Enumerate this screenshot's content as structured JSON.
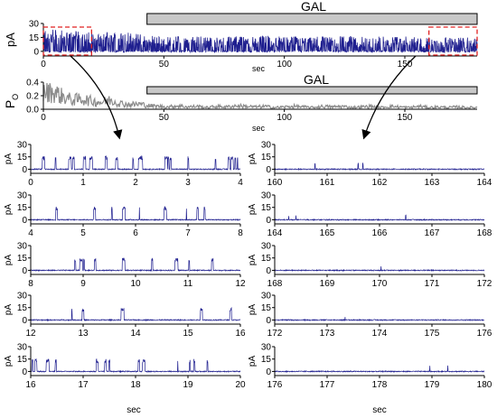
{
  "figure": {
    "annotation_label": "GAL",
    "trace_color": "#1f1f8f",
    "po_color": "#8c8c8c",
    "gal_bar_color": "#c8c8c8",
    "highlight_color": "#e02020"
  },
  "chart_data": [
    {
      "id": "top-current",
      "type": "line",
      "ylabel": "pA",
      "xlabel": "sec",
      "xlim": [
        0,
        180
      ],
      "ylim": [
        -5,
        30
      ],
      "yticks": [
        "0",
        "15",
        "30"
      ],
      "ytick_values": [
        0,
        15,
        30
      ],
      "xticks": [
        "0",
        "50",
        "100",
        "150"
      ],
      "xtick_values": [
        0,
        50,
        100,
        150
      ],
      "gal_bar": [
        43,
        180
      ],
      "highlight_windows": [
        [
          0,
          20
        ],
        [
          160,
          180
        ]
      ],
      "x": [
        0,
        5,
        10,
        15,
        20,
        25,
        30,
        35,
        40,
        45,
        50,
        55,
        60,
        65,
        70,
        75,
        80,
        85,
        90,
        95,
        100,
        105,
        110,
        115,
        120,
        125,
        130,
        135,
        140,
        145,
        150,
        155,
        160,
        165,
        170,
        175,
        180
      ],
      "y_max": [
        25,
        23,
        22,
        21,
        21,
        20,
        22,
        20,
        19,
        17,
        16,
        16,
        15,
        16,
        15,
        16,
        16,
        15,
        16,
        17,
        15,
        16,
        15,
        16,
        15,
        16,
        16,
        15,
        16,
        15,
        16,
        15,
        14,
        15,
        14,
        15,
        14
      ]
    },
    {
      "id": "top-po",
      "type": "line",
      "ylabel": "P",
      "ylabel_sub": "O",
      "xlabel": "sec",
      "xlim": [
        0,
        180
      ],
      "ylim": [
        0,
        0.4
      ],
      "yticks": [
        "0.0",
        "0.2",
        "0.4"
      ],
      "ytick_values": [
        0.0,
        0.2,
        0.4
      ],
      "xticks": [
        "0",
        "50",
        "100",
        "150"
      ],
      "xtick_values": [
        0,
        50,
        100,
        150
      ],
      "gal_bar": [
        43,
        180
      ],
      "x": [
        0,
        4,
        8,
        12,
        16,
        20,
        24,
        28,
        32,
        36,
        40,
        44,
        48,
        52,
        56,
        60,
        64,
        68,
        72,
        76,
        80,
        84,
        88,
        92,
        96,
        100,
        104,
        108,
        112,
        116,
        120,
        124,
        128,
        132,
        136,
        140,
        144,
        148,
        152,
        156,
        160,
        164,
        168,
        172,
        176,
        180
      ],
      "y": [
        0.28,
        0.3,
        0.22,
        0.16,
        0.18,
        0.14,
        0.12,
        0.16,
        0.1,
        0.08,
        0.09,
        0.06,
        0.05,
        0.04,
        0.06,
        0.04,
        0.05,
        0.03,
        0.05,
        0.04,
        0.06,
        0.05,
        0.04,
        0.05,
        0.03,
        0.04,
        0.05,
        0.04,
        0.03,
        0.05,
        0.04,
        0.05,
        0.03,
        0.04,
        0.05,
        0.03,
        0.05,
        0.04,
        0.03,
        0.05,
        0.03,
        0.04,
        0.03,
        0.04,
        0.03,
        0.03
      ]
    },
    {
      "id": "detail-panels",
      "type": "line",
      "ylabel": "pA",
      "xlabel": "sec",
      "ylim": [
        -5,
        30
      ],
      "yticks": [
        "0",
        "15",
        "30"
      ],
      "ytick_values": [
        0,
        15,
        30
      ],
      "panels": [
        {
          "id": "l1",
          "xlim": [
            0,
            4
          ],
          "xticks": [
            "0",
            "1",
            "2",
            "3",
            "4"
          ],
          "activity": "high",
          "event_max": 16,
          "ybase": 0
        },
        {
          "id": "l2",
          "xlim": [
            4,
            8
          ],
          "xticks": [
            "4",
            "5",
            "6",
            "7",
            "8"
          ],
          "activity": "high",
          "event_max": 16,
          "ybase": 0
        },
        {
          "id": "l3",
          "xlim": [
            8,
            12
          ],
          "xticks": [
            "8",
            "9",
            "10",
            "11",
            "12"
          ],
          "activity": "medium",
          "event_max": 15,
          "ybase": 0
        },
        {
          "id": "l4",
          "xlim": [
            12,
            16
          ],
          "xticks": [
            "12",
            "13",
            "14",
            "15",
            "16"
          ],
          "activity": "medium",
          "event_max": 15,
          "ybase": 0
        },
        {
          "id": "l5",
          "xlim": [
            16,
            20
          ],
          "xticks": [
            "16",
            "17",
            "18",
            "19",
            "20"
          ],
          "activity": "medium",
          "event_max": 15,
          "ybase": 0
        },
        {
          "id": "r1",
          "xlim": [
            160,
            164
          ],
          "xticks": [
            "160",
            "161",
            "162",
            "163",
            "164"
          ],
          "activity": "low",
          "event_max": 8,
          "ybase": 0
        },
        {
          "id": "r2",
          "xlim": [
            164,
            168
          ],
          "xticks": [
            "164",
            "165",
            "166",
            "167",
            "168"
          ],
          "activity": "low",
          "event_max": 6,
          "ybase": 0
        },
        {
          "id": "r3",
          "xlim": [
            168,
            172
          ],
          "xticks": [
            "168",
            "169",
            "170",
            "171",
            "172"
          ],
          "activity": "low",
          "event_max": 5,
          "ybase": 0
        },
        {
          "id": "r4",
          "xlim": [
            172,
            176
          ],
          "xticks": [
            "172",
            "173",
            "174",
            "175",
            "176"
          ],
          "activity": "low",
          "event_max": 5,
          "ybase": 0
        },
        {
          "id": "r5",
          "xlim": [
            176,
            180
          ],
          "xticks": [
            "176",
            "177",
            "178",
            "179",
            "180"
          ],
          "activity": "low",
          "event_max": 8,
          "ybase": 0
        }
      ]
    }
  ]
}
